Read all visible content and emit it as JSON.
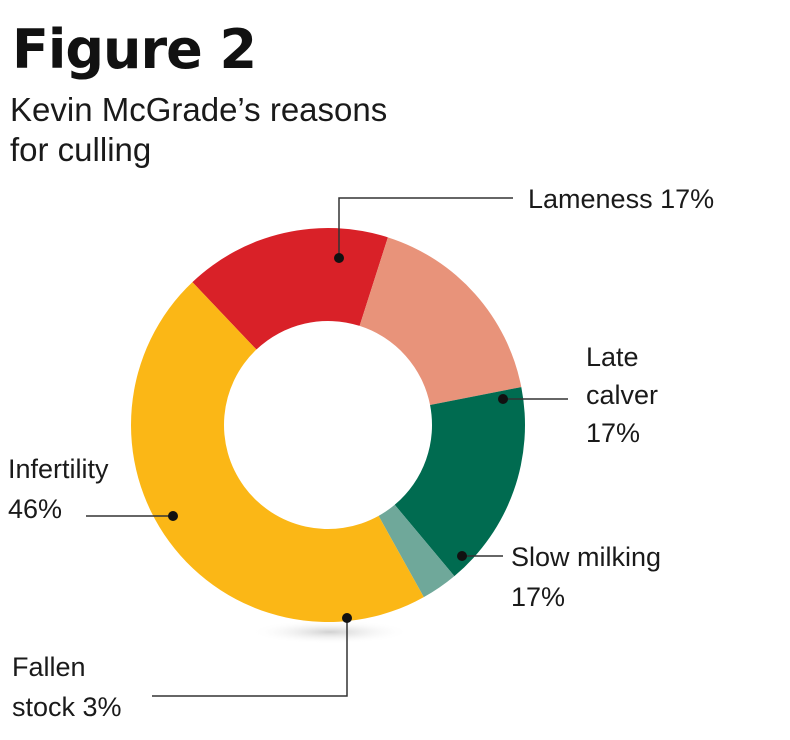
{
  "title": "Figure 2",
  "subtitle": "Kevin McGrade’s reasons for culling",
  "chart_data": {
    "type": "pie",
    "donut": true,
    "slices": [
      {
        "label_lines": [
          "Lameness 17%"
        ],
        "category": "Lameness",
        "value": 17,
        "color": "#d92128"
      },
      {
        "label_lines": [
          "Late",
          "calver",
          "17%"
        ],
        "category": "Late calver",
        "value": 17,
        "color": "#e8937a"
      },
      {
        "label_lines": [
          "Slow milking",
          "17%"
        ],
        "category": "Slow milking",
        "value": 17,
        "color": "#006b50"
      },
      {
        "label_lines": [
          "Fallen",
          "stock 3%"
        ],
        "category": "Fallen stock",
        "value": 3,
        "color": "#6fa89a"
      },
      {
        "label_lines": [
          "Infertility",
          "46%"
        ],
        "category": "Infertility",
        "value": 46,
        "color": "#fbb716"
      }
    ]
  }
}
